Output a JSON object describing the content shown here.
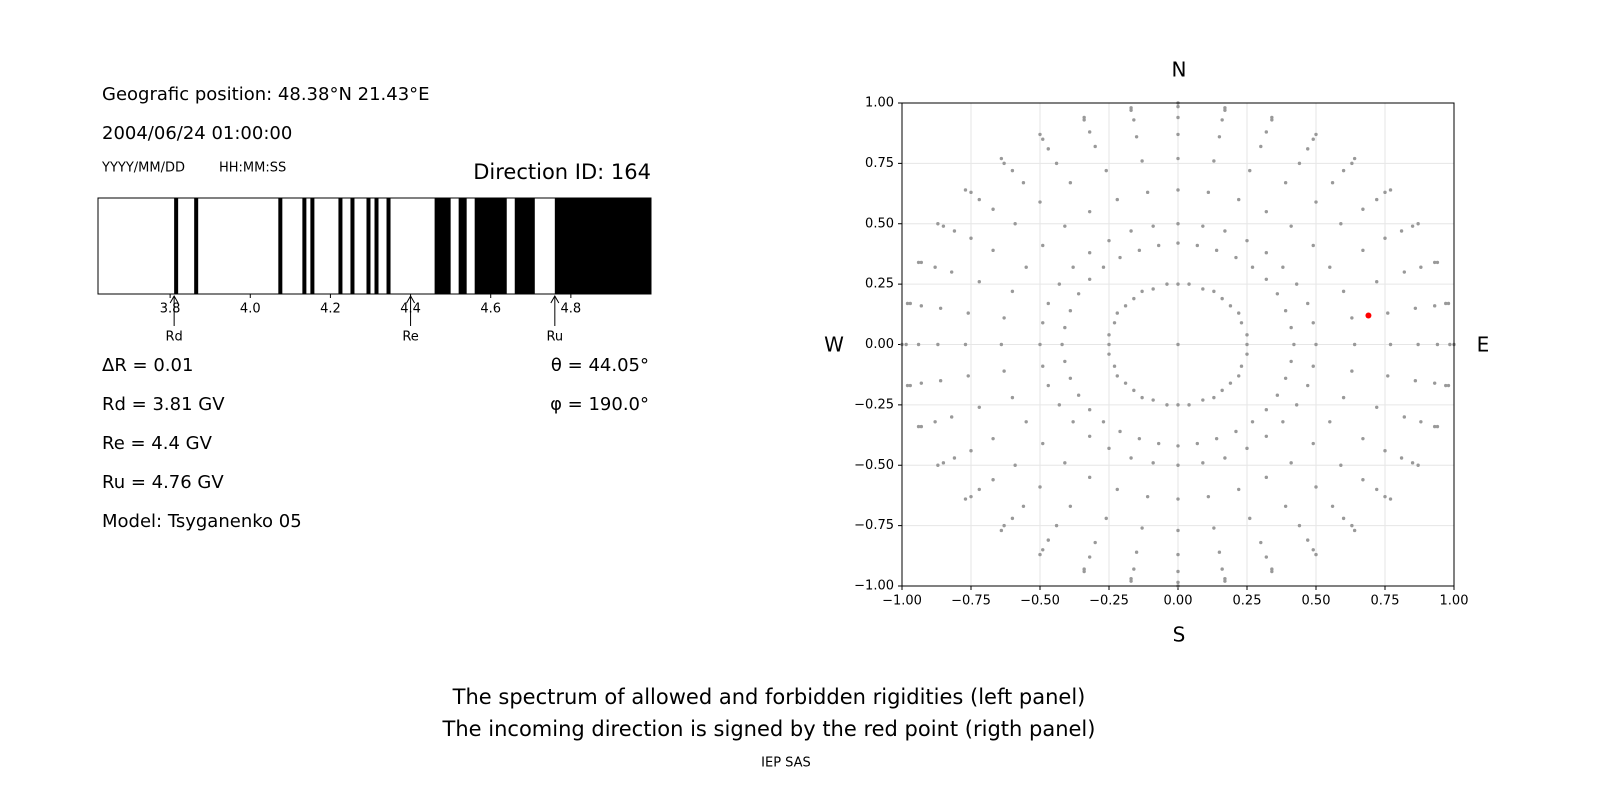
{
  "info": {
    "position": "Geografic position: 48.38°N 21.43°E",
    "datetime": "2004/06/24 01:00:00",
    "date_format": "YYYY/MM/DD",
    "time_format": "HH:MM:SS",
    "delta_r": "ΔR = 0.01",
    "rd": "Rd = 3.81 GV",
    "re": "Re = 4.4 GV",
    "ru": "Ru = 4.76 GV",
    "model": "Model: Tsyganenko 05",
    "theta": "θ = 44.05°",
    "phi": "φ = 190.0°"
  },
  "chart_data": [
    {
      "type": "spectrum",
      "title": "Direction ID: 164",
      "color": "#000000",
      "xlim": [
        3.62,
        5.0
      ],
      "xticks": [
        3.8,
        {
          "value": 4,
          "label": "4.0"
        },
        4.2,
        4.4,
        4.6,
        4.8
      ],
      "forbidden": [
        [
          3.81,
          3.82
        ],
        [
          3.86,
          3.87
        ],
        [
          4.07,
          4.08
        ],
        [
          4.13,
          4.14
        ],
        [
          4.15,
          4.16
        ],
        [
          4.22,
          4.23
        ],
        [
          4.25,
          4.26
        ],
        [
          4.29,
          4.3
        ],
        [
          4.31,
          4.32
        ],
        [
          4.34,
          4.35
        ],
        [
          4.46,
          4.5
        ],
        [
          4.52,
          4.54
        ],
        [
          4.56,
          4.64
        ],
        [
          4.66,
          4.71
        ],
        [
          4.76,
          5.0
        ]
      ],
      "markers": [
        {
          "label": "Rd",
          "value": 3.81
        },
        {
          "label": "Re",
          "value": 4.4
        },
        {
          "label": "Ru",
          "value": 4.76
        }
      ]
    },
    {
      "type": "scatter",
      "color": "#999999",
      "grid": true,
      "compass": {
        "n": "N",
        "s": "S",
        "w": "W",
        "e": "E"
      },
      "xlim": [
        -1,
        1
      ],
      "ylim": [
        -1,
        1
      ],
      "xticks": [
        {
          "value": -1,
          "label": "−1.00"
        },
        {
          "value": -0.75,
          "label": "−0.75"
        },
        {
          "value": -0.5,
          "label": "−0.50"
        },
        {
          "value": -0.25,
          "label": "−0.25"
        },
        {
          "value": 0,
          "label": "0.00"
        },
        {
          "value": 0.25,
          "label": "0.25"
        },
        {
          "value": 0.5,
          "label": "0.50"
        },
        {
          "value": 0.75,
          "label": "0.75"
        },
        {
          "value": 1,
          "label": "1.00"
        }
      ],
      "yticks": [
        {
          "value": -1,
          "label": "−1.00"
        },
        {
          "value": -0.75,
          "label": "−0.75"
        },
        {
          "value": -0.5,
          "label": "−0.50"
        },
        {
          "value": -0.25,
          "label": "−0.25"
        },
        {
          "value": 0,
          "label": "0.00"
        },
        {
          "value": 0.25,
          "label": "0.25"
        },
        {
          "value": 0.5,
          "label": "0.50"
        },
        {
          "value": 0.75,
          "label": "0.75"
        },
        {
          "value": 1,
          "label": "1.00"
        }
      ],
      "highlight": {
        "x": 0.69,
        "y": 0.12,
        "color": "#ff0000"
      },
      "series": [
        {
          "x": [
            0,
            0.25,
            0.25,
            0.23,
            0.22,
            0.19,
            0.16,
            0.13,
            0.09,
            0.04,
            0,
            -0.04,
            -0.09,
            -0.13,
            -0.16,
            -0.19,
            -0.22,
            -0.23,
            -0.25,
            -0.25,
            -0.25,
            -0.23,
            -0.22,
            -0.19,
            -0.16,
            -0.13,
            -0.09,
            -0.04,
            0,
            0.04,
            0.09,
            0.13,
            0.16,
            0.19,
            0.22,
            0.23,
            0.25
          ],
          "y": [
            0,
            0,
            0.04,
            0.09,
            0.13,
            0.16,
            0.19,
            0.22,
            0.23,
            0.25,
            0.25,
            0.25,
            0.23,
            0.22,
            0.19,
            0.16,
            0.13,
            0.09,
            0.04,
            0,
            -0.04,
            -0.09,
            -0.13,
            -0.16,
            -0.19,
            -0.22,
            -0.23,
            -0.25,
            -0.25,
            -0.25,
            -0.23,
            -0.22,
            -0.19,
            -0.16,
            -0.13,
            -0.09,
            -0.04
          ]
        },
        {
          "x": [
            0.42,
            0.5,
            0.64,
            0.77,
            0.87,
            0.94,
            0.985,
            1
          ],
          "y": [
            0,
            0,
            0,
            0,
            0,
            0,
            0,
            0
          ]
        },
        {
          "x": [
            0.41,
            0.49,
            0.63,
            0.76,
            0.86,
            0.93,
            0.97,
            0.98
          ],
          "y": [
            0.07,
            0.09,
            0.11,
            0.13,
            0.15,
            0.16,
            0.17,
            0.17
          ]
        },
        {
          "x": [
            0.39,
            0.47,
            0.6,
            0.72,
            0.82,
            0.88,
            0.93,
            0.94
          ],
          "y": [
            0.14,
            0.17,
            0.22,
            0.26,
            0.3,
            0.32,
            0.34,
            0.34
          ]
        },
        {
          "x": [
            0.36,
            0.43,
            0.55,
            0.67,
            0.75,
            0.81,
            0.85,
            0.87
          ],
          "y": [
            0.21,
            0.25,
            0.32,
            0.39,
            0.44,
            0.47,
            0.49,
            0.5
          ]
        },
        {
          "x": [
            0.32,
            0.38,
            0.49,
            0.59,
            0.67,
            0.72,
            0.75,
            0.77
          ],
          "y": [
            0.27,
            0.32,
            0.41,
            0.5,
            0.56,
            0.6,
            0.63,
            0.64
          ]
        },
        {
          "x": [
            0.27,
            0.32,
            0.41,
            0.5,
            0.56,
            0.6,
            0.63,
            0.64
          ],
          "y": [
            0.32,
            0.38,
            0.49,
            0.59,
            0.67,
            0.72,
            0.75,
            0.77
          ]
        },
        {
          "x": [
            0.21,
            0.25,
            0.32,
            0.39,
            0.44,
            0.47,
            0.49,
            0.5
          ],
          "y": [
            0.36,
            0.43,
            0.55,
            0.67,
            0.75,
            0.81,
            0.85,
            0.87
          ]
        },
        {
          "x": [
            0.14,
            0.17,
            0.22,
            0.26,
            0.3,
            0.32,
            0.34,
            0.34
          ],
          "y": [
            0.39,
            0.47,
            0.6,
            0.72,
            0.82,
            0.88,
            0.93,
            0.94
          ]
        },
        {
          "x": [
            0.07,
            0.09,
            0.11,
            0.13,
            0.15,
            0.16,
            0.17,
            0.17
          ],
          "y": [
            0.41,
            0.49,
            0.63,
            0.76,
            0.86,
            0.93,
            0.97,
            0.98
          ]
        },
        {
          "x": [
            0,
            0,
            0,
            0,
            0,
            0,
            0,
            0
          ],
          "y": [
            0.42,
            0.5,
            0.64,
            0.77,
            0.87,
            0.94,
            0.985,
            1
          ]
        },
        {
          "x": [
            -0.07,
            -0.09,
            -0.11,
            -0.13,
            -0.15,
            -0.16,
            -0.17,
            -0.17
          ],
          "y": [
            0.41,
            0.49,
            0.63,
            0.76,
            0.86,
            0.93,
            0.97,
            0.98
          ]
        },
        {
          "x": [
            -0.14,
            -0.17,
            -0.22,
            -0.26,
            -0.3,
            -0.32,
            -0.34,
            -0.34
          ],
          "y": [
            0.39,
            0.47,
            0.6,
            0.72,
            0.82,
            0.88,
            0.93,
            0.94
          ]
        },
        {
          "x": [
            -0.21,
            -0.25,
            -0.32,
            -0.39,
            -0.44,
            -0.47,
            -0.49,
            -0.5
          ],
          "y": [
            0.36,
            0.43,
            0.55,
            0.67,
            0.75,
            0.81,
            0.85,
            0.87
          ]
        },
        {
          "x": [
            -0.27,
            -0.32,
            -0.41,
            -0.5,
            -0.56,
            -0.6,
            -0.63,
            -0.64
          ],
          "y": [
            0.32,
            0.38,
            0.49,
            0.59,
            0.67,
            0.72,
            0.75,
            0.77
          ]
        },
        {
          "x": [
            -0.32,
            -0.38,
            -0.49,
            -0.59,
            -0.67,
            -0.72,
            -0.75,
            -0.77
          ],
          "y": [
            0.27,
            0.32,
            0.41,
            0.5,
            0.56,
            0.6,
            0.63,
            0.64
          ]
        },
        {
          "x": [
            -0.36,
            -0.43,
            -0.55,
            -0.67,
            -0.75,
            -0.81,
            -0.85,
            -0.87
          ],
          "y": [
            0.21,
            0.25,
            0.32,
            0.39,
            0.44,
            0.47,
            0.49,
            0.5
          ]
        },
        {
          "x": [
            -0.39,
            -0.47,
            -0.6,
            -0.72,
            -0.82,
            -0.88,
            -0.93,
            -0.94
          ],
          "y": [
            0.14,
            0.17,
            0.22,
            0.26,
            0.3,
            0.32,
            0.34,
            0.34
          ]
        },
        {
          "x": [
            -0.41,
            -0.49,
            -0.63,
            -0.76,
            -0.86,
            -0.93,
            -0.97,
            -0.98
          ],
          "y": [
            0.07,
            0.09,
            0.11,
            0.13,
            0.15,
            0.16,
            0.17,
            0.17
          ]
        },
        {
          "x": [
            -0.42,
            -0.5,
            -0.64,
            -0.77,
            -0.87,
            -0.94,
            -0.985,
            -1
          ],
          "y": [
            0,
            0,
            0,
            0,
            0,
            0,
            0,
            0
          ]
        },
        {
          "x": [
            -0.41,
            -0.49,
            -0.63,
            -0.76,
            -0.86,
            -0.93,
            -0.97,
            -0.98
          ],
          "y": [
            -0.07,
            -0.09,
            -0.11,
            -0.13,
            -0.15,
            -0.16,
            -0.17,
            -0.17
          ]
        },
        {
          "x": [
            -0.39,
            -0.47,
            -0.6,
            -0.72,
            -0.82,
            -0.88,
            -0.93,
            -0.94
          ],
          "y": [
            -0.14,
            -0.17,
            -0.22,
            -0.26,
            -0.3,
            -0.32,
            -0.34,
            -0.34
          ]
        },
        {
          "x": [
            -0.36,
            -0.43,
            -0.55,
            -0.67,
            -0.75,
            -0.81,
            -0.85,
            -0.87
          ],
          "y": [
            -0.21,
            -0.25,
            -0.32,
            -0.39,
            -0.44,
            -0.47,
            -0.49,
            -0.5
          ]
        },
        {
          "x": [
            -0.32,
            -0.38,
            -0.49,
            -0.59,
            -0.67,
            -0.72,
            -0.75,
            -0.77
          ],
          "y": [
            -0.27,
            -0.32,
            -0.41,
            -0.5,
            -0.56,
            -0.6,
            -0.63,
            -0.64
          ]
        },
        {
          "x": [
            -0.27,
            -0.32,
            -0.41,
            -0.5,
            -0.56,
            -0.6,
            -0.63,
            -0.64
          ],
          "y": [
            -0.32,
            -0.38,
            -0.49,
            -0.59,
            -0.67,
            -0.72,
            -0.75,
            -0.77
          ]
        },
        {
          "x": [
            -0.21,
            -0.25,
            -0.32,
            -0.39,
            -0.44,
            -0.47,
            -0.49,
            -0.5
          ],
          "y": [
            -0.36,
            -0.43,
            -0.55,
            -0.67,
            -0.75,
            -0.81,
            -0.85,
            -0.87
          ]
        },
        {
          "x": [
            -0.14,
            -0.17,
            -0.22,
            -0.26,
            -0.3,
            -0.32,
            -0.34,
            -0.34
          ],
          "y": [
            -0.39,
            -0.47,
            -0.6,
            -0.72,
            -0.82,
            -0.88,
            -0.93,
            -0.94
          ]
        },
        {
          "x": [
            -0.07,
            -0.09,
            -0.11,
            -0.13,
            -0.15,
            -0.16,
            -0.17,
            -0.17
          ],
          "y": [
            -0.41,
            -0.49,
            -0.63,
            -0.76,
            -0.86,
            -0.93,
            -0.97,
            -0.98
          ]
        },
        {
          "x": [
            0,
            0,
            0,
            0,
            0,
            0,
            0,
            0
          ],
          "y": [
            -0.42,
            -0.5,
            -0.64,
            -0.77,
            -0.87,
            -0.94,
            -0.985,
            -1
          ]
        },
        {
          "x": [
            0.07,
            0.09,
            0.11,
            0.13,
            0.15,
            0.16,
            0.17,
            0.17
          ],
          "y": [
            -0.41,
            -0.49,
            -0.63,
            -0.76,
            -0.86,
            -0.93,
            -0.97,
            -0.98
          ]
        },
        {
          "x": [
            0.14,
            0.17,
            0.22,
            0.26,
            0.3,
            0.32,
            0.34,
            0.34
          ],
          "y": [
            -0.39,
            -0.47,
            -0.6,
            -0.72,
            -0.82,
            -0.88,
            -0.93,
            -0.94
          ]
        },
        {
          "x": [
            0.21,
            0.25,
            0.32,
            0.39,
            0.44,
            0.47,
            0.49,
            0.5
          ],
          "y": [
            -0.36,
            -0.43,
            -0.55,
            -0.67,
            -0.75,
            -0.81,
            -0.85,
            -0.87
          ]
        },
        {
          "x": [
            0.27,
            0.32,
            0.41,
            0.5,
            0.56,
            0.6,
            0.63,
            0.64
          ],
          "y": [
            -0.32,
            -0.38,
            -0.49,
            -0.59,
            -0.67,
            -0.72,
            -0.75,
            -0.77
          ]
        },
        {
          "x": [
            0.32,
            0.38,
            0.49,
            0.59,
            0.67,
            0.72,
            0.75,
            0.77
          ],
          "y": [
            -0.27,
            -0.32,
            -0.41,
            -0.5,
            -0.56,
            -0.6,
            -0.63,
            -0.64
          ]
        },
        {
          "x": [
            0.36,
            0.43,
            0.55,
            0.67,
            0.75,
            0.81,
            0.85,
            0.87
          ],
          "y": [
            -0.21,
            -0.25,
            -0.32,
            -0.39,
            -0.44,
            -0.47,
            -0.49,
            -0.5
          ]
        },
        {
          "x": [
            0.39,
            0.47,
            0.6,
            0.72,
            0.82,
            0.88,
            0.93,
            0.94
          ],
          "y": [
            -0.14,
            -0.17,
            -0.22,
            -0.26,
            -0.3,
            -0.32,
            -0.34,
            -0.34
          ]
        },
        {
          "x": [
            0.41,
            0.49,
            0.63,
            0.76,
            0.86,
            0.93,
            0.97,
            0.98
          ],
          "y": [
            -0.07,
            -0.09,
            -0.11,
            -0.13,
            -0.15,
            -0.16,
            -0.17,
            -0.17
          ]
        }
      ]
    }
  ],
  "caption": [
    "The spectrum of allowed and forbidden rigidities (left panel)",
    "The incoming direction is signed by the red point (rigth panel)"
  ],
  "footer": "IEP SAS"
}
